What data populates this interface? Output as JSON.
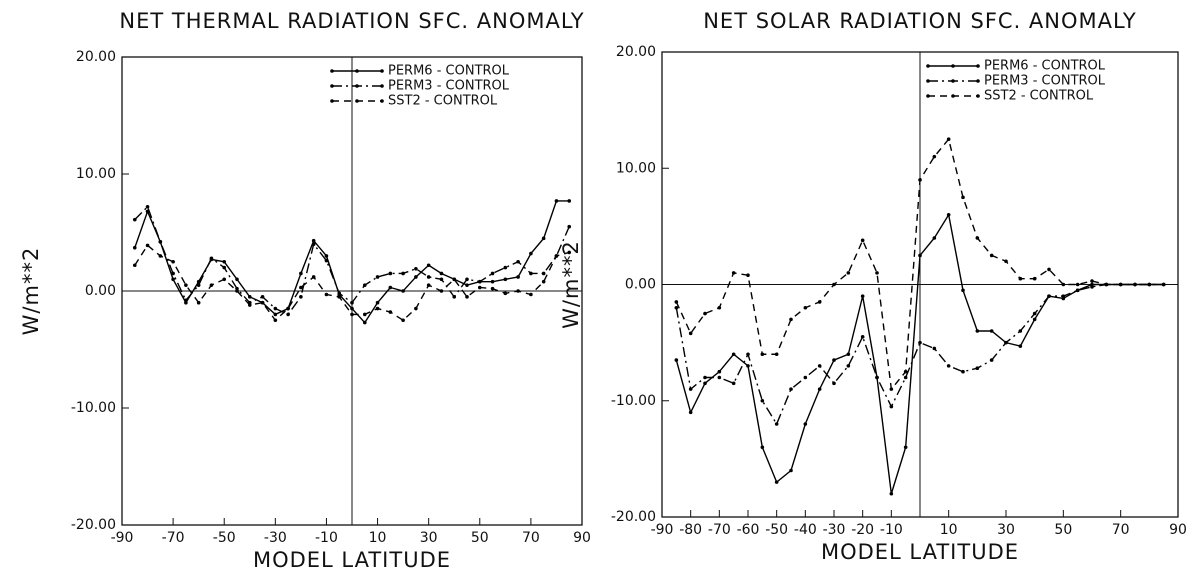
{
  "chart_data": [
    {
      "type": "line",
      "title": "NET THERMAL RADIATION SFC. ANOMALY",
      "x_label": "MODEL LATITUDE",
      "y_label": "W/m**2",
      "x": [
        -85,
        -80,
        -75,
        -70,
        -65,
        -60,
        -55,
        -50,
        -45,
        -40,
        -35,
        -30,
        -25,
        -20,
        -15,
        -10,
        -5,
        0,
        5,
        10,
        15,
        20,
        25,
        30,
        35,
        40,
        45,
        50,
        55,
        60,
        65,
        70,
        75,
        80,
        85
      ],
      "series": [
        {
          "name": "PERM6 - CONTROL",
          "color": "#000000",
          "dash": "solid",
          "values": [
            3.7,
            6.8,
            4.2,
            1.0,
            -1.0,
            0.8,
            2.7,
            2.5,
            1.0,
            -0.5,
            -1.0,
            -2.0,
            -1.5,
            1.5,
            4.3,
            3.0,
            -0.3,
            -1.5,
            -2.7,
            -1.0,
            0.3,
            0.0,
            1.2,
            2.2,
            1.5,
            1.0,
            0.5,
            0.8,
            0.8,
            1.0,
            1.2,
            3.2,
            4.5,
            7.7,
            7.7
          ]
        },
        {
          "name": "PERM3 - CONTROL",
          "color": "#000000",
          "dash": "dashdot",
          "values": [
            6.1,
            7.2,
            4.2,
            1.5,
            -0.8,
            0.5,
            2.8,
            2.0,
            0.2,
            -1.0,
            -0.5,
            -1.5,
            -2.0,
            -0.5,
            4.0,
            2.6,
            -0.2,
            -1.0,
            0.5,
            1.2,
            1.5,
            1.5,
            1.9,
            1.2,
            1.0,
            -0.5,
            1.0,
            0.8,
            1.5,
            2.0,
            2.5,
            1.5,
            1.5,
            3.0,
            5.5
          ]
        },
        {
          "name": "SST2 - CONTROL",
          "color": "#000000",
          "dash": "dashed",
          "values": [
            2.2,
            3.9,
            3.0,
            2.5,
            0.5,
            -1.0,
            0.5,
            1.0,
            0.0,
            -1.2,
            -1.0,
            -2.5,
            -1.5,
            0.3,
            1.2,
            -0.3,
            -0.5,
            -2.0,
            -2.0,
            -1.5,
            -1.8,
            -2.5,
            -1.5,
            0.5,
            0.0,
            1.0,
            -0.5,
            0.3,
            0.2,
            -0.2,
            0.0,
            -0.3,
            0.8,
            3.0,
            3.3
          ]
        }
      ],
      "xlim": [
        -90,
        90
      ],
      "xticks": [
        -90,
        -70,
        -50,
        -30,
        -10,
        10,
        30,
        50,
        70,
        90
      ],
      "ylim": [
        -20,
        20
      ],
      "yticks": [
        {
          "value": -20,
          "label": "-20.00"
        },
        {
          "value": -10,
          "label": "-10.00"
        },
        {
          "value": 0,
          "label": "0.00"
        },
        {
          "value": 10,
          "label": "10.00"
        },
        {
          "value": 20,
          "label": "20.00"
        }
      ],
      "legend": "top-right"
    },
    {
      "type": "line",
      "title": "NET SOLAR RADIATION SFC. ANOMALY",
      "x_label": "MODEL LATITUDE",
      "y_label": "W/m**2",
      "x": [
        -85,
        -80,
        -75,
        -70,
        -65,
        -60,
        -55,
        -50,
        -45,
        -40,
        -35,
        -30,
        -25,
        -20,
        -15,
        -10,
        -5,
        0,
        5,
        10,
        15,
        20,
        25,
        30,
        35,
        40,
        45,
        50,
        55,
        60,
        65,
        70,
        75,
        80,
        85
      ],
      "series": [
        {
          "name": "PERM6 - CONTROL",
          "color": "#000000",
          "dash": "solid",
          "values": [
            -6.5,
            -11,
            -8.5,
            -7.5,
            -6,
            -7,
            -14,
            -17,
            -16,
            -12,
            -9,
            -6.5,
            -6,
            -1,
            -8,
            -18,
            -14,
            2.5,
            4,
            6,
            -0.5,
            -4,
            -4,
            -5,
            -5.3,
            -3,
            -1,
            -1.2,
            -0.5,
            0,
            0,
            0,
            0,
            0,
            0
          ]
        },
        {
          "name": "PERM3 - CONTROL",
          "color": "#000000",
          "dash": "dashdot",
          "values": [
            -2,
            -9,
            -8,
            -8,
            -8.5,
            -6,
            -10,
            -12,
            -9,
            -8,
            -7,
            -8.5,
            -7,
            -4.5,
            -8,
            -10.5,
            -8,
            -5,
            -5.5,
            -7,
            -7.5,
            -7.2,
            -6.5,
            -5,
            -4,
            -2.5,
            -1,
            -1,
            -0.5,
            -0.2,
            0,
            0,
            0,
            0,
            0
          ]
        },
        {
          "name": "SST2 - CONTROL",
          "color": "#000000",
          "dash": "dashed",
          "values": [
            -1.5,
            -4.2,
            -2.5,
            -2,
            1,
            0.8,
            -6,
            -6,
            -3,
            -2,
            -1.5,
            0,
            1,
            3.8,
            1,
            -9,
            -7.5,
            9,
            11,
            12.5,
            7.5,
            4,
            2.5,
            2,
            0.5,
            0.5,
            1.3,
            0,
            0,
            0.3,
            0,
            0,
            0,
            0,
            0
          ]
        }
      ],
      "xlim": [
        -90,
        90
      ],
      "xticks": [
        -90,
        -80,
        -70,
        -60,
        -50,
        -40,
        -30,
        -20,
        -10,
        10,
        30,
        50,
        70,
        90
      ],
      "ylim": [
        -20,
        20
      ],
      "yticks": [
        {
          "value": -20,
          "label": "-20.00"
        },
        {
          "value": -10,
          "label": "-10.00"
        },
        {
          "value": 0,
          "label": "0.00"
        },
        {
          "value": 10,
          "label": "10.00"
        },
        {
          "value": 20,
          "label": "20.00"
        }
      ],
      "legend": "top-right"
    }
  ]
}
